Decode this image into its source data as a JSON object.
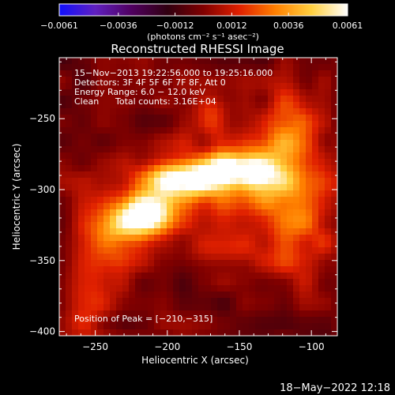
{
  "chart_data": {
    "type": "heatmap",
    "title": "Reconstructed RHESSI Image",
    "xlabel": "Heliocentric X (arcsec)",
    "ylabel": "Heliocentric Y (arcsec)",
    "xlim": [
      -275,
      -82
    ],
    "ylim": [
      -403,
      -207
    ],
    "x_ticks": [
      -250,
      -200,
      -150,
      -100
    ],
    "y_ticks": [
      -250,
      -300,
      -350,
      -400
    ],
    "x_tick_labels": [
      "−250",
      "−200",
      "−150",
      "−100"
    ],
    "y_tick_labels": [
      "−250",
      "−300",
      "−350",
      "−400"
    ],
    "colorbar": {
      "range": [
        -0.0061,
        0.0061
      ],
      "ticks": [
        -0.0061,
        -0.0036,
        -0.0012,
        0.0012,
        0.0036,
        0.0061
      ],
      "tick_labels": [
        "−0.0061",
        "−0.0036",
        "−0.0012",
        "0.0012",
        "0.0036",
        "0.0061"
      ],
      "unit_label": "(photons cm⁻² s⁻¹ asec⁻²)",
      "colors": [
        "#1010ff",
        "#6020c0",
        "#500060",
        "#300010",
        "#800000",
        "#e02000",
        "#ff8000",
        "#ffd040",
        "#ffffff"
      ]
    },
    "annotations": {
      "time_range": "15−Nov−2013 19:22:56.000 to 19:25:16.000",
      "detectors": "Detectors: 3F 4F 5F 6F 7F 8F, Att 0",
      "energy": "Energy Range: 6.0 − 12.0 keV",
      "method": "Clean",
      "counts": "Total counts: 3.16E+04",
      "peak": "Position of Peak = [−210,−315]"
    },
    "peak_position": [
      -210,
      -315
    ],
    "emission_components": [
      {
        "x": -215,
        "y": -318,
        "sx": 12,
        "sy": 9,
        "amp": 0.0061
      },
      {
        "x": -190,
        "y": -293,
        "sx": 18,
        "sy": 9,
        "amp": 0.0052
      },
      {
        "x": -160,
        "y": -285,
        "sx": 14,
        "sy": 8,
        "amp": 0.0046
      },
      {
        "x": -136,
        "y": -288,
        "sx": 10,
        "sy": 10,
        "amp": 0.0044
      },
      {
        "x": -235,
        "y": -330,
        "sx": 14,
        "sy": 14,
        "amp": 0.0032
      },
      {
        "x": -175,
        "y": -300,
        "sx": 50,
        "sy": 24,
        "amp": 0.0022
      },
      {
        "x": -118,
        "y": -262,
        "sx": 14,
        "sy": 26,
        "amp": 0.0026
      },
      {
        "x": -110,
        "y": -320,
        "sx": 18,
        "sy": 34,
        "amp": 0.0024
      },
      {
        "x": -170,
        "y": -250,
        "sx": 8,
        "sy": 10,
        "amp": 0.0022
      },
      {
        "x": -255,
        "y": -375,
        "sx": 14,
        "sy": 30,
        "amp": 0.002
      },
      {
        "x": -160,
        "y": -345,
        "sx": 22,
        "sy": 10,
        "amp": 0.0016
      }
    ],
    "grid": false
  },
  "footer": {
    "date_stamp": "18−May−2022 12:18"
  }
}
